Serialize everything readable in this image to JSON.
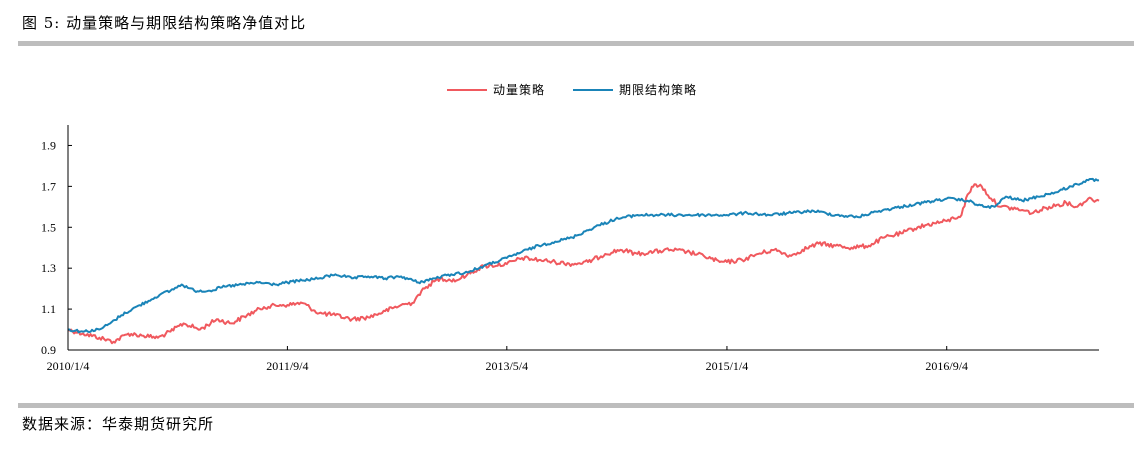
{
  "header": {
    "title": "图 5: 动量策略与期限结构策略净值对比"
  },
  "footer": {
    "source": "数据来源：华泰期货研究所"
  },
  "colors": {
    "momentum": "#f0595e",
    "term_structure": "#1a84b8",
    "rule": "#bdbdbd",
    "axis": "#000000"
  },
  "chart_data": {
    "type": "line",
    "title": "",
    "xlabel": "",
    "ylabel": "",
    "ylim": [
      0.9,
      2.0
    ],
    "yticks": [
      "0.9",
      "1.1",
      "1.3",
      "1.5",
      "1.7",
      "1.9"
    ],
    "xticks": [
      "2010/1/4",
      "2011/9/4",
      "2013/5/4",
      "2015/1/4",
      "2016/9/4"
    ],
    "x_range": [
      "2010/1/4",
      "2017/10/31"
    ],
    "legend_position": "top-center",
    "grid": false,
    "series": [
      {
        "name": "动量策略",
        "points": [
          [
            "2010/1/4",
            1.0
          ],
          [
            "2010/2/15",
            0.98
          ],
          [
            "2010/4/1",
            0.96
          ],
          [
            "2010/5/10",
            0.94
          ],
          [
            "2010/6/20",
            0.98
          ],
          [
            "2010/8/1",
            0.97
          ],
          [
            "2010/9/10",
            0.96
          ],
          [
            "2010/10/15",
            0.99
          ],
          [
            "2010/11/20",
            1.03
          ],
          [
            "2011/1/5",
            1.0
          ],
          [
            "2011/2/20",
            1.05
          ],
          [
            "2011/4/1",
            1.03
          ],
          [
            "2011/5/15",
            1.07
          ],
          [
            "2011/7/1",
            1.11
          ],
          [
            "2011/8/15",
            1.12
          ],
          [
            "2011/9/4",
            1.12
          ],
          [
            "2011/10/15",
            1.13
          ],
          [
            "2011/12/1",
            1.08
          ],
          [
            "2012/1/15",
            1.07
          ],
          [
            "2012/3/1",
            1.05
          ],
          [
            "2012/4/15",
            1.06
          ],
          [
            "2012/6/1",
            1.09
          ],
          [
            "2012/7/15",
            1.12
          ],
          [
            "2012/8/15",
            1.13
          ],
          [
            "2012/9/1",
            1.17
          ],
          [
            "2012/10/1",
            1.22
          ],
          [
            "2012/11/1",
            1.25
          ],
          [
            "2012/12/15",
            1.24
          ],
          [
            "2013/1/15",
            1.27
          ],
          [
            "2013/3/1",
            1.31
          ],
          [
            "2013/5/4",
            1.32
          ],
          [
            "2013/6/15",
            1.35
          ],
          [
            "2013/8/1",
            1.34
          ],
          [
            "2013/9/15",
            1.33
          ],
          [
            "2013/11/1",
            1.32
          ],
          [
            "2013/12/15",
            1.33
          ],
          [
            "2014/2/1",
            1.37
          ],
          [
            "2014/3/15",
            1.39
          ],
          [
            "2014/5/1",
            1.37
          ],
          [
            "2014/6/15",
            1.38
          ],
          [
            "2014/8/1",
            1.39
          ],
          [
            "2014/9/15",
            1.38
          ],
          [
            "2014/11/1",
            1.36
          ],
          [
            "2014/12/15",
            1.33
          ],
          [
            "2015/1/4",
            1.33
          ],
          [
            "2015/2/15",
            1.34
          ],
          [
            "2015/4/1",
            1.37
          ],
          [
            "2015/5/15",
            1.39
          ],
          [
            "2015/7/1",
            1.36
          ],
          [
            "2015/8/1",
            1.39
          ],
          [
            "2015/9/15",
            1.42
          ],
          [
            "2015/11/1",
            1.41
          ],
          [
            "2015/12/15",
            1.4
          ],
          [
            "2016/2/1",
            1.41
          ],
          [
            "2016/3/15",
            1.45
          ],
          [
            "2016/5/1",
            1.47
          ],
          [
            "2016/6/15",
            1.5
          ],
          [
            "2016/8/1",
            1.52
          ],
          [
            "2016/9/4",
            1.53
          ],
          [
            "2016/10/15",
            1.56
          ],
          [
            "2016/11/1",
            1.66
          ],
          [
            "2016/11/20",
            1.71
          ],
          [
            "2016/12/10",
            1.7
          ],
          [
            "2017/1/5",
            1.64
          ],
          [
            "2017/2/1",
            1.6
          ],
          [
            "2017/3/15",
            1.59
          ],
          [
            "2017/5/1",
            1.57
          ],
          [
            "2017/6/15",
            1.6
          ],
          [
            "2017/8/1",
            1.62
          ],
          [
            "2017/9/1",
            1.6
          ],
          [
            "2017/10/1",
            1.64
          ],
          [
            "2017/10/31",
            1.63
          ]
        ]
      },
      {
        "name": "期限结构策略",
        "points": [
          [
            "2010/1/4",
            1.0
          ],
          [
            "2010/2/15",
            0.99
          ],
          [
            "2010/4/1",
            1.0
          ],
          [
            "2010/5/1",
            1.03
          ],
          [
            "2010/6/1",
            1.07
          ],
          [
            "2010/7/1",
            1.1
          ],
          [
            "2010/8/15",
            1.14
          ],
          [
            "2010/9/15",
            1.17
          ],
          [
            "2010/10/15",
            1.19
          ],
          [
            "2010/11/15",
            1.22
          ],
          [
            "2010/12/20",
            1.19
          ],
          [
            "2011/2/1",
            1.19
          ],
          [
            "2011/3/15",
            1.21
          ],
          [
            "2011/5/1",
            1.22
          ],
          [
            "2011/6/15",
            1.23
          ],
          [
            "2011/8/1",
            1.22
          ],
          [
            "2011/9/4",
            1.23
          ],
          [
            "2011/10/15",
            1.24
          ],
          [
            "2011/12/1",
            1.25
          ],
          [
            "2012/1/15",
            1.27
          ],
          [
            "2012/3/1",
            1.25
          ],
          [
            "2012/4/15",
            1.26
          ],
          [
            "2012/6/1",
            1.25
          ],
          [
            "2012/7/15",
            1.26
          ],
          [
            "2012/9/1",
            1.23
          ],
          [
            "2012/10/15",
            1.25
          ],
          [
            "2012/12/1",
            1.27
          ],
          [
            "2013/1/15",
            1.28
          ],
          [
            "2013/3/1",
            1.31
          ],
          [
            "2013/5/4",
            1.35
          ],
          [
            "2013/6/15",
            1.38
          ],
          [
            "2013/8/1",
            1.41
          ],
          [
            "2013/9/15",
            1.43
          ],
          [
            "2013/11/1",
            1.45
          ],
          [
            "2014/1/1",
            1.5
          ],
          [
            "2014/3/1",
            1.54
          ],
          [
            "2014/5/1",
            1.56
          ],
          [
            "2014/7/1",
            1.56
          ],
          [
            "2014/9/1",
            1.56
          ],
          [
            "2014/11/1",
            1.56
          ],
          [
            "2015/1/4",
            1.56
          ],
          [
            "2015/3/1",
            1.57
          ],
          [
            "2015/5/1",
            1.56
          ],
          [
            "2015/7/1",
            1.57
          ],
          [
            "2015/9/1",
            1.58
          ],
          [
            "2015/11/1",
            1.56
          ],
          [
            "2016/1/1",
            1.55
          ],
          [
            "2016/3/1",
            1.58
          ],
          [
            "2016/5/1",
            1.6
          ],
          [
            "2016/7/1",
            1.62
          ],
          [
            "2016/9/4",
            1.64
          ],
          [
            "2016/11/1",
            1.63
          ],
          [
            "2016/12/15",
            1.6
          ],
          [
            "2017/1/15",
            1.6
          ],
          [
            "2017/2/15",
            1.65
          ],
          [
            "2017/4/1",
            1.63
          ],
          [
            "2017/5/15",
            1.65
          ],
          [
            "2017/7/1",
            1.67
          ],
          [
            "2017/8/15",
            1.7
          ],
          [
            "2017/10/1",
            1.73
          ],
          [
            "2017/10/31",
            1.73
          ]
        ]
      }
    ]
  }
}
